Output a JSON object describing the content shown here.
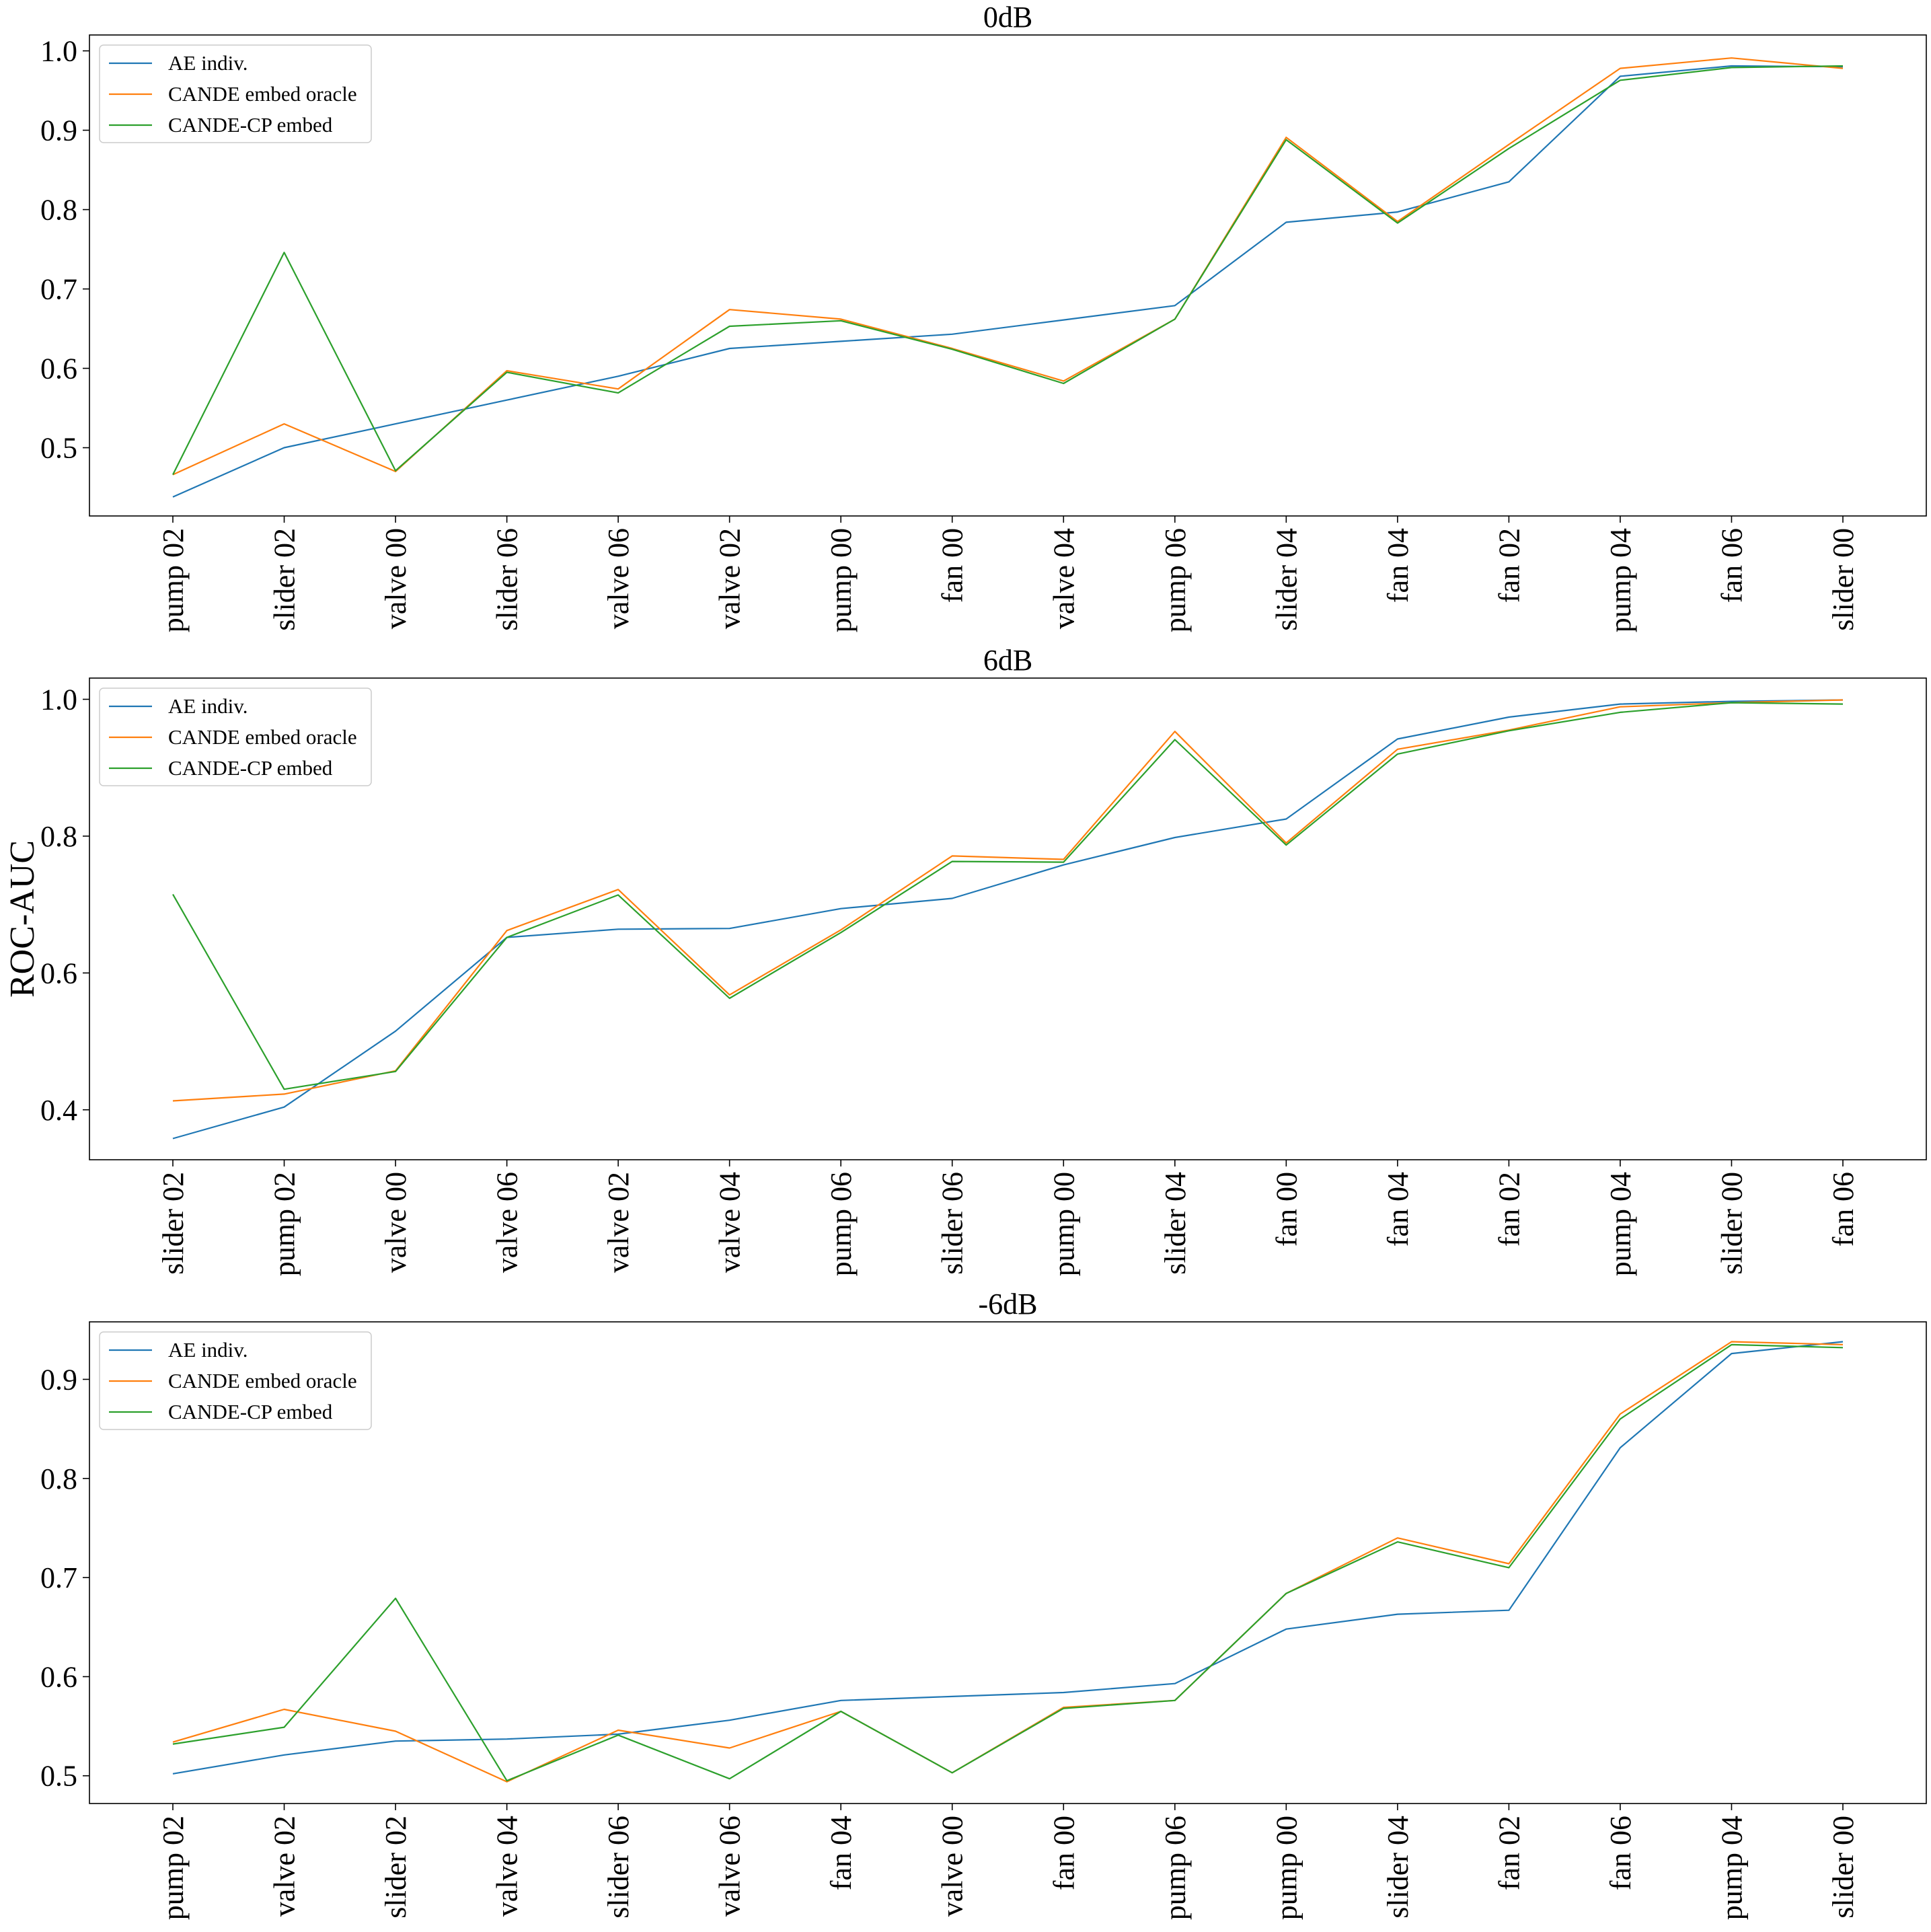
{
  "chart_data": [
    {
      "type": "line",
      "title": "0dB",
      "ylabel": "",
      "xlabel": "",
      "categories": [
        "pump 02",
        "slider 02",
        "valve 00",
        "slider 06",
        "valve 06",
        "valve 02",
        "pump 00",
        "fan 00",
        "valve 04",
        "pump 06",
        "slider 04",
        "fan 04",
        "fan 02",
        "pump 04",
        "fan 06",
        "slider 00"
      ],
      "yticks": [
        0.5,
        0.6,
        0.7,
        0.8,
        0.9,
        1.0
      ],
      "ylim": [
        0.414,
        1.02
      ],
      "legend_position": "upper-left",
      "series": [
        {
          "name": "AE indiv.",
          "color": "#1f77b4",
          "values": [
            0.438,
            0.5,
            0.53,
            0.56,
            0.59,
            0.625,
            0.634,
            0.643,
            0.661,
            0.679,
            0.784,
            0.797,
            0.835,
            0.968,
            0.981,
            0.98
          ]
        },
        {
          "name": "CANDE embed oracle",
          "color": "#ff7f0e",
          "values": [
            0.466,
            0.53,
            0.47,
            0.597,
            0.574,
            0.674,
            0.662,
            0.625,
            0.584,
            0.662,
            0.891,
            0.785,
            0.882,
            0.978,
            0.991,
            0.978
          ]
        },
        {
          "name": "CANDE-CP embed",
          "color": "#2ca02c",
          "values": [
            0.466,
            0.746,
            0.471,
            0.595,
            0.569,
            0.653,
            0.66,
            0.624,
            0.581,
            0.662,
            0.888,
            0.783,
            0.877,
            0.963,
            0.979,
            0.981
          ]
        }
      ]
    },
    {
      "type": "line",
      "title": "6dB",
      "ylabel": "ROC-AUC",
      "xlabel": "",
      "categories": [
        "slider 02",
        "pump 02",
        "valve 00",
        "valve 06",
        "valve 02",
        "valve 04",
        "pump 06",
        "slider 06",
        "pump 00",
        "slider 04",
        "fan 00",
        "fan 04",
        "fan 02",
        "pump 04",
        "slider 00",
        "fan 06"
      ],
      "yticks": [
        0.4,
        0.6,
        0.8,
        1.0
      ],
      "ylim": [
        0.327,
        1.031
      ],
      "legend_position": "upper-left",
      "series": [
        {
          "name": "AE indiv.",
          "color": "#1f77b4",
          "values": [
            0.358,
            0.404,
            0.515,
            0.652,
            0.664,
            0.665,
            0.694,
            0.709,
            0.758,
            0.798,
            0.825,
            0.942,
            0.974,
            0.993,
            0.997,
            0.999
          ]
        },
        {
          "name": "CANDE embed oracle",
          "color": "#ff7f0e",
          "values": [
            0.413,
            0.423,
            0.457,
            0.662,
            0.722,
            0.568,
            0.663,
            0.771,
            0.766,
            0.953,
            0.79,
            0.927,
            0.955,
            0.989,
            0.995,
            0.999
          ]
        },
        {
          "name": "CANDE-CP embed",
          "color": "#2ca02c",
          "values": [
            0.715,
            0.43,
            0.456,
            0.652,
            0.714,
            0.563,
            0.659,
            0.763,
            0.762,
            0.941,
            0.787,
            0.92,
            0.954,
            0.981,
            0.995,
            0.993
          ]
        }
      ]
    },
    {
      "type": "line",
      "title": "-6dB",
      "ylabel": "",
      "xlabel": "",
      "categories": [
        "pump 02",
        "valve 02",
        "slider 02",
        "valve 04",
        "slider 06",
        "valve 06",
        "fan 04",
        "valve 00",
        "fan 00",
        "pump 06",
        "pump 00",
        "slider 04",
        "fan 02",
        "fan 06",
        "pump 04",
        "slider 00"
      ],
      "yticks": [
        0.5,
        0.6,
        0.7,
        0.8,
        0.9
      ],
      "ylim": [
        0.472,
        0.958
      ],
      "legend_position": "upper-left",
      "series": [
        {
          "name": "AE indiv.",
          "color": "#1f77b4",
          "values": [
            0.502,
            0.521,
            0.535,
            0.537,
            0.542,
            0.556,
            0.576,
            0.58,
            0.584,
            0.593,
            0.648,
            0.663,
            0.667,
            0.831,
            0.926,
            0.938
          ]
        },
        {
          "name": "CANDE embed oracle",
          "color": "#ff7f0e",
          "values": [
            0.534,
            0.567,
            0.545,
            0.494,
            0.546,
            0.528,
            0.565,
            0.503,
            0.569,
            0.576,
            0.684,
            0.74,
            0.714,
            0.865,
            0.938,
            0.935
          ]
        },
        {
          "name": "CANDE-CP embed",
          "color": "#2ca02c",
          "values": [
            0.532,
            0.549,
            0.679,
            0.495,
            0.541,
            0.497,
            0.565,
            0.503,
            0.568,
            0.576,
            0.684,
            0.736,
            0.71,
            0.86,
            0.935,
            0.932
          ]
        }
      ]
    }
  ]
}
